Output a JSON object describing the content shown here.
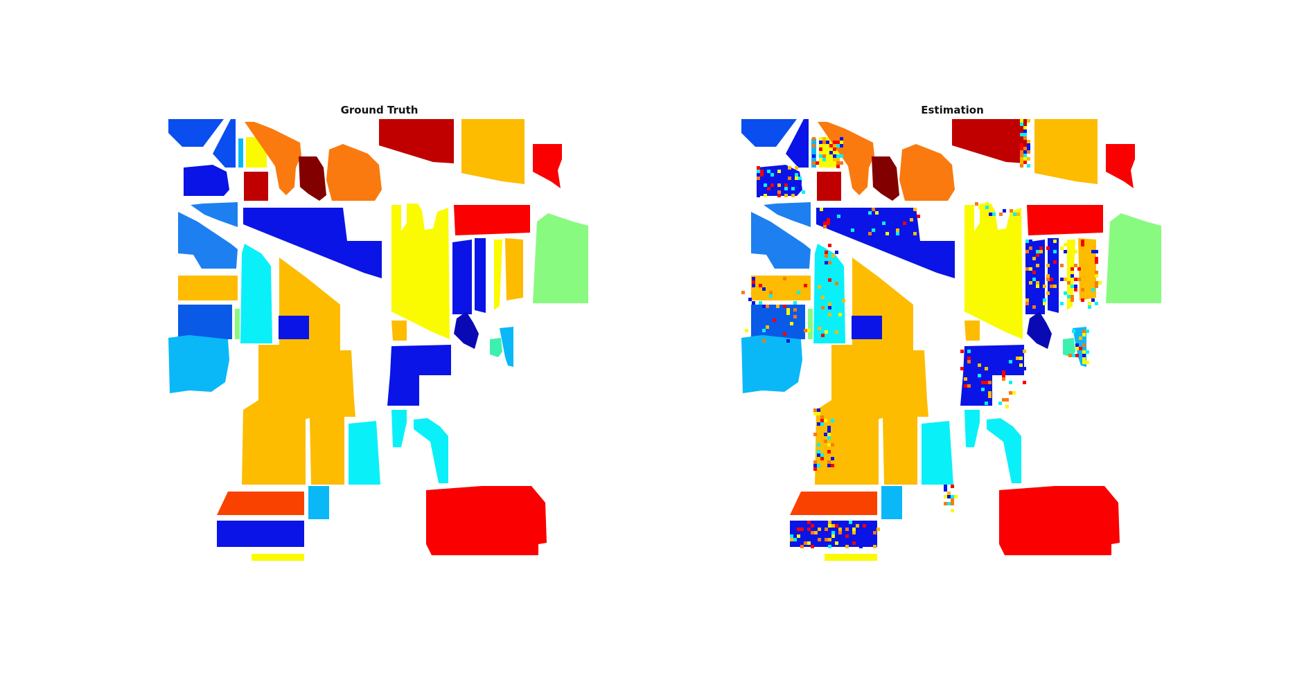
{
  "figure": {
    "panels": [
      {
        "id": "ground-truth",
        "title": "Ground Truth"
      },
      {
        "id": "estimation",
        "title": "Estimation"
      }
    ]
  },
  "class_colors": {
    "blue_bright": "#0a4ef0",
    "blue_mid": "#0a5ae8",
    "blue_deep": "#0a14e6",
    "navy": "#0a0ab4",
    "sky_blue": "#1e80f0",
    "light_sky": "#0ab8f8",
    "cyan": "#0af0f8",
    "aquamarine": "#3ef0b0",
    "light_green": "#88fa80",
    "yellow": "#fafa00",
    "amber": "#fdbc00",
    "orange": "#fa7a10",
    "red_orange": "#fa4200",
    "red": "#fa0000",
    "dark_red": "#c00000",
    "maroon": "#820000"
  },
  "estimation_noise_colors": [
    "#fa0000",
    "#fafa00",
    "#0a14e6",
    "#0af0f8",
    "#fa7a10",
    "#fdbc00"
  ]
}
